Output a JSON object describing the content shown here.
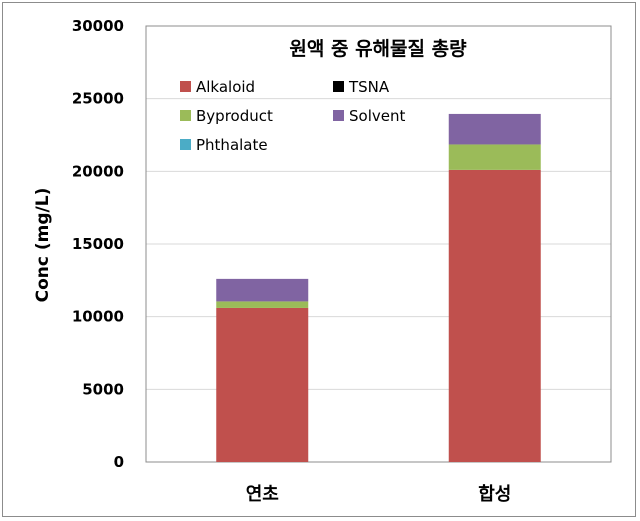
{
  "chart_data": {
    "type": "bar",
    "stacked": true,
    "title": "원액 중 유해물질 총량",
    "ylabel": "Conc (mg/L)",
    "xlabel": "",
    "ylim": [
      0,
      30000
    ],
    "yticks": [
      0,
      5000,
      10000,
      15000,
      20000,
      25000,
      30000
    ],
    "grid": true,
    "legend_position": "top-left inside plot",
    "categories": [
      "연초",
      "합성"
    ],
    "series": [
      {
        "name": "Alkaloid",
        "color": "#c0504d",
        "values": [
          10600,
          20100
        ]
      },
      {
        "name": "TSNA",
        "color": "#000000",
        "values": [
          0,
          0
        ]
      },
      {
        "name": "Byproduct",
        "color": "#9bbb59",
        "values": [
          450,
          1750
        ]
      },
      {
        "name": "Solvent",
        "color": "#8064a2",
        "values": [
          1550,
          2100
        ]
      },
      {
        "name": "Phthalate",
        "color": "#4bacc6",
        "values": [
          0,
          0
        ]
      }
    ]
  }
}
